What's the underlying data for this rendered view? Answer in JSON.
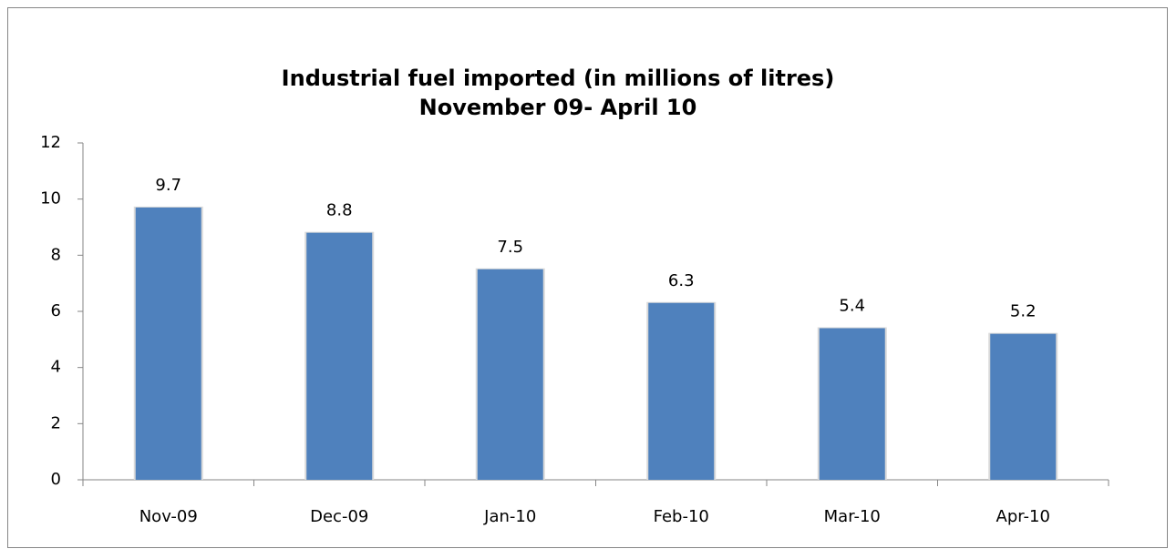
{
  "chart_data": {
    "type": "bar",
    "title": "Industrial fuel imported (in millions of litres)",
    "subtitle": "November 09- April 10",
    "categories": [
      "Nov-09",
      "Dec-09",
      "Jan-10",
      "Feb-10",
      "Mar-10",
      "Apr-10"
    ],
    "values": [
      9.7,
      8.8,
      7.5,
      6.3,
      5.4,
      5.2
    ],
    "color": "#4f81bd",
    "ylim": [
      0,
      12
    ],
    "yticks": [
      0,
      2,
      4,
      6,
      8,
      10,
      12
    ],
    "grid": false
  }
}
